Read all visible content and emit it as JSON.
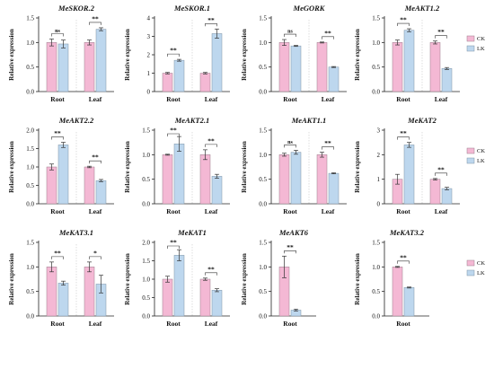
{
  "figure": {
    "group_colors": {
      "CK": "#f4b8d4",
      "LK": "#bdd7ee"
    },
    "stroke_colors": {
      "CK": "#9a7f8c",
      "LK": "#7f93a6"
    },
    "ylabel": "Relative expression",
    "sig_labels": {
      "ns": "ns",
      "star": "*",
      "double_star": "**"
    }
  },
  "chart_data": [
    {
      "type": "bar",
      "title": "MeSKOR.2",
      "categories": [
        "Root",
        "Leaf"
      ],
      "series": [
        {
          "name": "CK",
          "values": [
            1.0,
            1.0
          ],
          "errors": [
            0.07,
            0.05
          ]
        },
        {
          "name": "LK",
          "values": [
            0.97,
            1.27
          ],
          "errors": [
            0.08,
            0.03
          ]
        }
      ],
      "ylabel": "Relative expression",
      "ylim": [
        0,
        1.5
      ],
      "yticks": [
        "0.0",
        "0.5",
        "1.0",
        "1.5"
      ],
      "significance": [
        "ns",
        "**"
      ],
      "legend": "none"
    },
    {
      "type": "bar",
      "title": "MeSKOR.1",
      "categories": [
        "Root",
        "Leaf"
      ],
      "series": [
        {
          "name": "CK",
          "values": [
            1.0,
            1.0
          ],
          "errors": [
            0.04,
            0.04
          ]
        },
        {
          "name": "LK",
          "values": [
            1.7,
            3.15
          ],
          "errors": [
            0.05,
            0.25
          ]
        }
      ],
      "ylabel": "Relative expression",
      "ylim": [
        0,
        4
      ],
      "yticks": [
        "0",
        "1",
        "2",
        "3",
        "4"
      ],
      "significance": [
        "**",
        "**"
      ],
      "legend": "none"
    },
    {
      "type": "bar",
      "title": "MeGORK",
      "categories": [
        "Root",
        "Leaf"
      ],
      "series": [
        {
          "name": "CK",
          "values": [
            1.0,
            1.0
          ],
          "errors": [
            0.06,
            0.01
          ]
        },
        {
          "name": "LK",
          "values": [
            0.93,
            0.5
          ],
          "errors": [
            0.01,
            0.01
          ]
        }
      ],
      "ylabel": "Relative expression",
      "ylim": [
        0,
        1.5
      ],
      "yticks": [
        "0.0",
        "0.5",
        "1.0",
        "1.5"
      ],
      "significance": [
        "ns",
        "**"
      ],
      "legend": "none"
    },
    {
      "type": "bar",
      "title": "MeAKT1.2",
      "categories": [
        "Root",
        "Leaf"
      ],
      "series": [
        {
          "name": "CK",
          "values": [
            1.0,
            1.0
          ],
          "errors": [
            0.05,
            0.03
          ]
        },
        {
          "name": "LK",
          "values": [
            1.25,
            0.47
          ],
          "errors": [
            0.03,
            0.02
          ]
        }
      ],
      "ylabel": "Relative expression",
      "ylim": [
        0,
        1.5
      ],
      "yticks": [
        "0.0",
        "0.5",
        "1.0",
        "1.5"
      ],
      "significance": [
        "**",
        "**"
      ],
      "legend": "top-right"
    },
    {
      "type": "bar",
      "title": "MeAKT2.2",
      "categories": [
        "Root",
        "Leaf"
      ],
      "series": [
        {
          "name": "CK",
          "values": [
            1.0,
            1.0
          ],
          "errors": [
            0.08,
            0.02
          ]
        },
        {
          "name": "LK",
          "values": [
            1.6,
            0.63
          ],
          "errors": [
            0.07,
            0.03
          ]
        }
      ],
      "ylabel": "Relative expression",
      "ylim": [
        0,
        2.0
      ],
      "yticks": [
        "0.0",
        "0.5",
        "1.0",
        "1.5",
        "2.0"
      ],
      "significance": [
        "**",
        "**"
      ],
      "legend": "none"
    },
    {
      "type": "bar",
      "title": "MeAKT2.1",
      "categories": [
        "Root",
        "Leaf"
      ],
      "series": [
        {
          "name": "CK",
          "values": [
            1.0,
            1.0
          ],
          "errors": [
            0.01,
            0.1
          ]
        },
        {
          "name": "LK",
          "values": [
            1.22,
            0.56
          ],
          "errors": [
            0.15,
            0.04
          ]
        }
      ],
      "ylabel": "Relative expression",
      "ylim": [
        0,
        1.5
      ],
      "yticks": [
        "0.0",
        "0.5",
        "1.0",
        "1.5"
      ],
      "significance": [
        "**",
        "**"
      ],
      "legend": "none"
    },
    {
      "type": "bar",
      "title": "MeAKT1.1",
      "categories": [
        "Root",
        "Leaf"
      ],
      "series": [
        {
          "name": "CK",
          "values": [
            1.0,
            1.0
          ],
          "errors": [
            0.03,
            0.05
          ]
        },
        {
          "name": "LK",
          "values": [
            1.05,
            0.62
          ],
          "errors": [
            0.04,
            0.01
          ]
        }
      ],
      "ylabel": "Relative expression",
      "ylim": [
        0,
        1.5
      ],
      "yticks": [
        "0.0",
        "0.5",
        "1.0",
        "1.5"
      ],
      "significance": [
        "ns",
        "**"
      ],
      "legend": "none"
    },
    {
      "type": "bar",
      "title": "MeKAT2",
      "categories": [
        "Root",
        "Leaf"
      ],
      "series": [
        {
          "name": "CK",
          "values": [
            1.0,
            1.0
          ],
          "errors": [
            0.2,
            0.03
          ]
        },
        {
          "name": "LK",
          "values": [
            2.4,
            0.62
          ],
          "errors": [
            0.1,
            0.05
          ]
        }
      ],
      "ylabel": "Relative expression",
      "ylim": [
        0,
        3
      ],
      "yticks": [
        "0",
        "1",
        "2",
        "3"
      ],
      "significance": [
        "**",
        "**"
      ],
      "legend": "top-right"
    },
    {
      "type": "bar",
      "title": "MeKAT3.1",
      "categories": [
        "Root",
        "Leaf"
      ],
      "series": [
        {
          "name": "CK",
          "values": [
            1.0,
            1.0
          ],
          "errors": [
            0.1,
            0.1
          ]
        },
        {
          "name": "LK",
          "values": [
            0.67,
            0.65
          ],
          "errors": [
            0.04,
            0.18
          ]
        }
      ],
      "ylabel": "Relative expression",
      "ylim": [
        0,
        1.5
      ],
      "yticks": [
        "0.0",
        "0.5",
        "1.0",
        "1.5"
      ],
      "significance": [
        "**",
        "*"
      ],
      "legend": "none"
    },
    {
      "type": "bar",
      "title": "MeKAT1",
      "categories": [
        "Root",
        "Leaf"
      ],
      "series": [
        {
          "name": "CK",
          "values": [
            1.0,
            1.0
          ],
          "errors": [
            0.08,
            0.03
          ]
        },
        {
          "name": "LK",
          "values": [
            1.65,
            0.7
          ],
          "errors": [
            0.15,
            0.04
          ]
        }
      ],
      "ylabel": "Relative expression",
      "ylim": [
        0,
        2.0
      ],
      "yticks": [
        "0.0",
        "0.5",
        "1.0",
        "1.5",
        "2.0"
      ],
      "significance": [
        "**",
        "**"
      ],
      "legend": "none"
    },
    {
      "type": "bar",
      "title": "MeAKT6",
      "categories": [
        "Root"
      ],
      "series": [
        {
          "name": "CK",
          "values": [
            1.0
          ],
          "errors": [
            0.22
          ]
        },
        {
          "name": "LK",
          "values": [
            0.12
          ],
          "errors": [
            0.02
          ]
        }
      ],
      "ylabel": "Relative expression",
      "ylim": [
        0,
        1.5
      ],
      "yticks": [
        "0.0",
        "0.5",
        "1.0",
        "1.5"
      ],
      "significance": [
        "**"
      ],
      "legend": "none"
    },
    {
      "type": "bar",
      "title": "MeKAT3.2",
      "categories": [
        "Root"
      ],
      "series": [
        {
          "name": "CK",
          "values": [
            1.0
          ],
          "errors": [
            0.01
          ]
        },
        {
          "name": "LK",
          "values": [
            0.58
          ],
          "errors": [
            0.01
          ]
        }
      ],
      "ylabel": "Relative expression",
      "ylim": [
        0,
        1.5
      ],
      "yticks": [
        "0.0",
        "0.5",
        "1.0",
        "1.5"
      ],
      "significance": [
        "**"
      ],
      "legend": "top-right"
    }
  ]
}
